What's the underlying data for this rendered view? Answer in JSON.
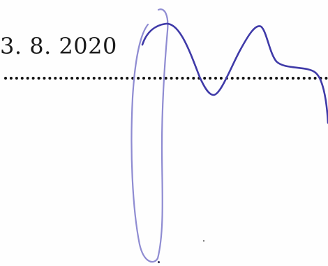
{
  "document": {
    "date": "3. 8. 2020"
  },
  "signature": {
    "ink_color": "#3f3aa8",
    "faint_ink_color": "#8f8cd2"
  }
}
